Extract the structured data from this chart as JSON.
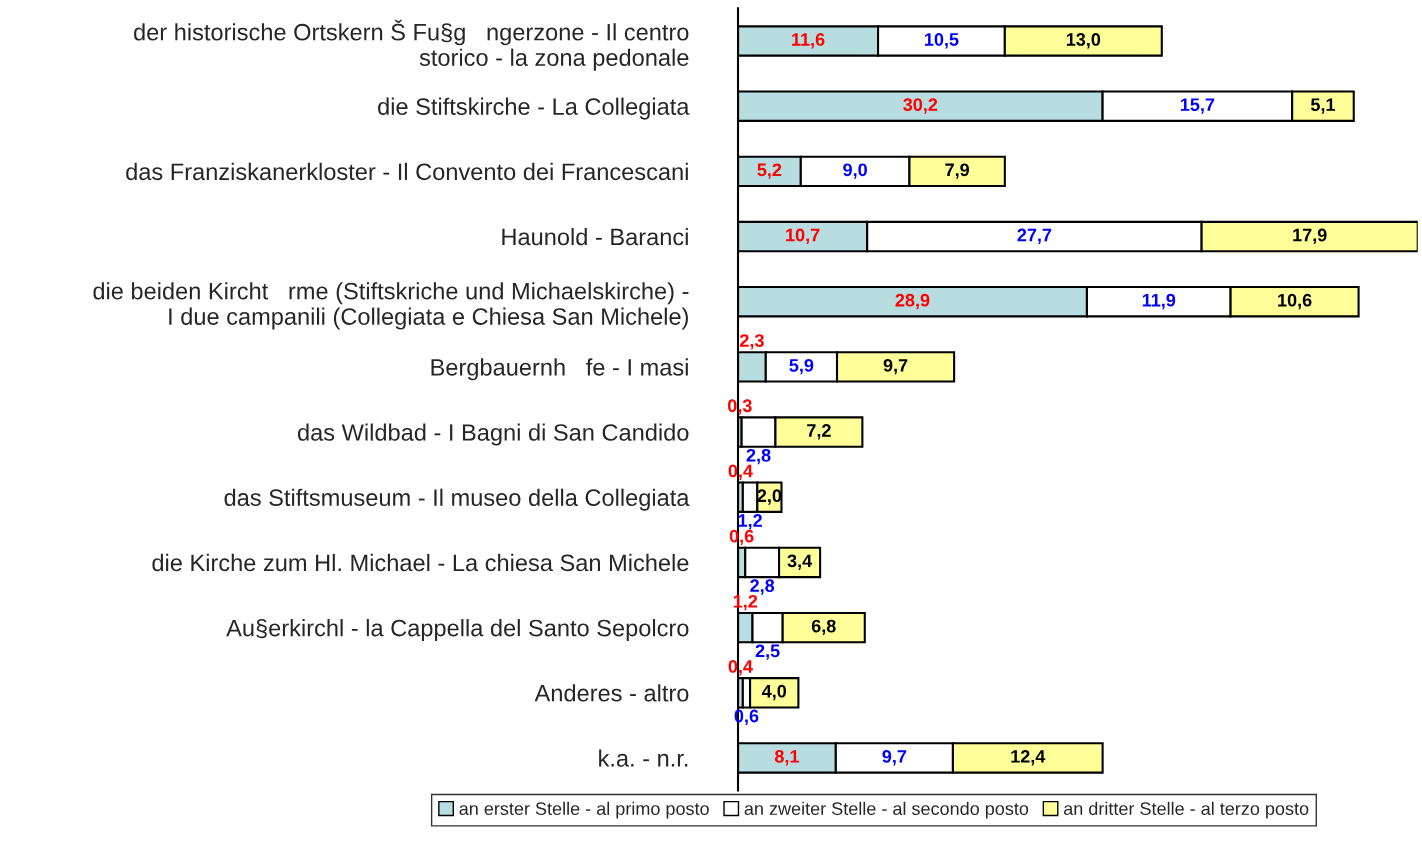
{
  "chart_data": {
    "type": "bar",
    "orientation": "horizontal",
    "stacked": true,
    "legend": "bottom",
    "grid": false,
    "categories": [
      "der historische Ortskern Š Fu§g   ngerzone - Il centro\nstorico - la zona pedonale",
      "die Stiftskirche - La Collegiata",
      "das Franziskanerkloster - Il Convento dei Francescani",
      "Haunold - Baranci",
      "die beiden Kircht   rme (Stiftskriche und Michaelskirche) -\nI due campanili (Collegiata e Chiesa San Michele)",
      "Bergbauernh   fe - I masi",
      "das Wildbad - I Bagni di San Candido",
      "das Stiftsmuseum - Il museo della Collegiata",
      "die Kirche zum Hl. Michael - La chiesa San Michele",
      "Au§erkirchl - la Cappella del Santo Sepolcro",
      "Anderes - altro",
      "k.a. - n.r."
    ],
    "series": [
      {
        "name": "an erster Stelle - al primo posto",
        "color": "#b7dde0",
        "values": [
          11.6,
          30.2,
          5.2,
          10.7,
          28.9,
          2.3,
          0.3,
          0.4,
          0.6,
          1.2,
          0.4,
          8.1
        ],
        "value_labels": [
          "11,6",
          "30,2",
          "5,2",
          "10,7",
          "28,9",
          "2,3",
          "0,3",
          "0,4",
          "0,6",
          "1,2",
          "0,4",
          "8,1"
        ]
      },
      {
        "name": "an zweiter Stelle - al secondo posto",
        "color": "#ffffff",
        "values": [
          10.5,
          15.7,
          9.0,
          27.7,
          11.9,
          5.9,
          2.8,
          1.2,
          2.8,
          2.5,
          0.6,
          9.7
        ],
        "value_labels": [
          "10,5",
          "15,7",
          "9,0",
          "27,7",
          "11,9",
          "5,9",
          "2,8",
          "1,2",
          "2,8",
          "2,5",
          "0,6",
          "9,7"
        ]
      },
      {
        "name": "an dritter Stelle - al terzo posto",
        "color": "#ffff99",
        "values": [
          13.0,
          5.1,
          7.9,
          17.9,
          10.6,
          9.7,
          7.2,
          2.0,
          3.4,
          6.8,
          4.0,
          12.4
        ],
        "value_labels": [
          "13,0",
          "5,1",
          "7,9",
          "17,9",
          "10,6",
          "9,7",
          "7,2",
          "2,0",
          "3,4",
          "6,8",
          "4,0",
          "12,4"
        ]
      }
    ]
  }
}
